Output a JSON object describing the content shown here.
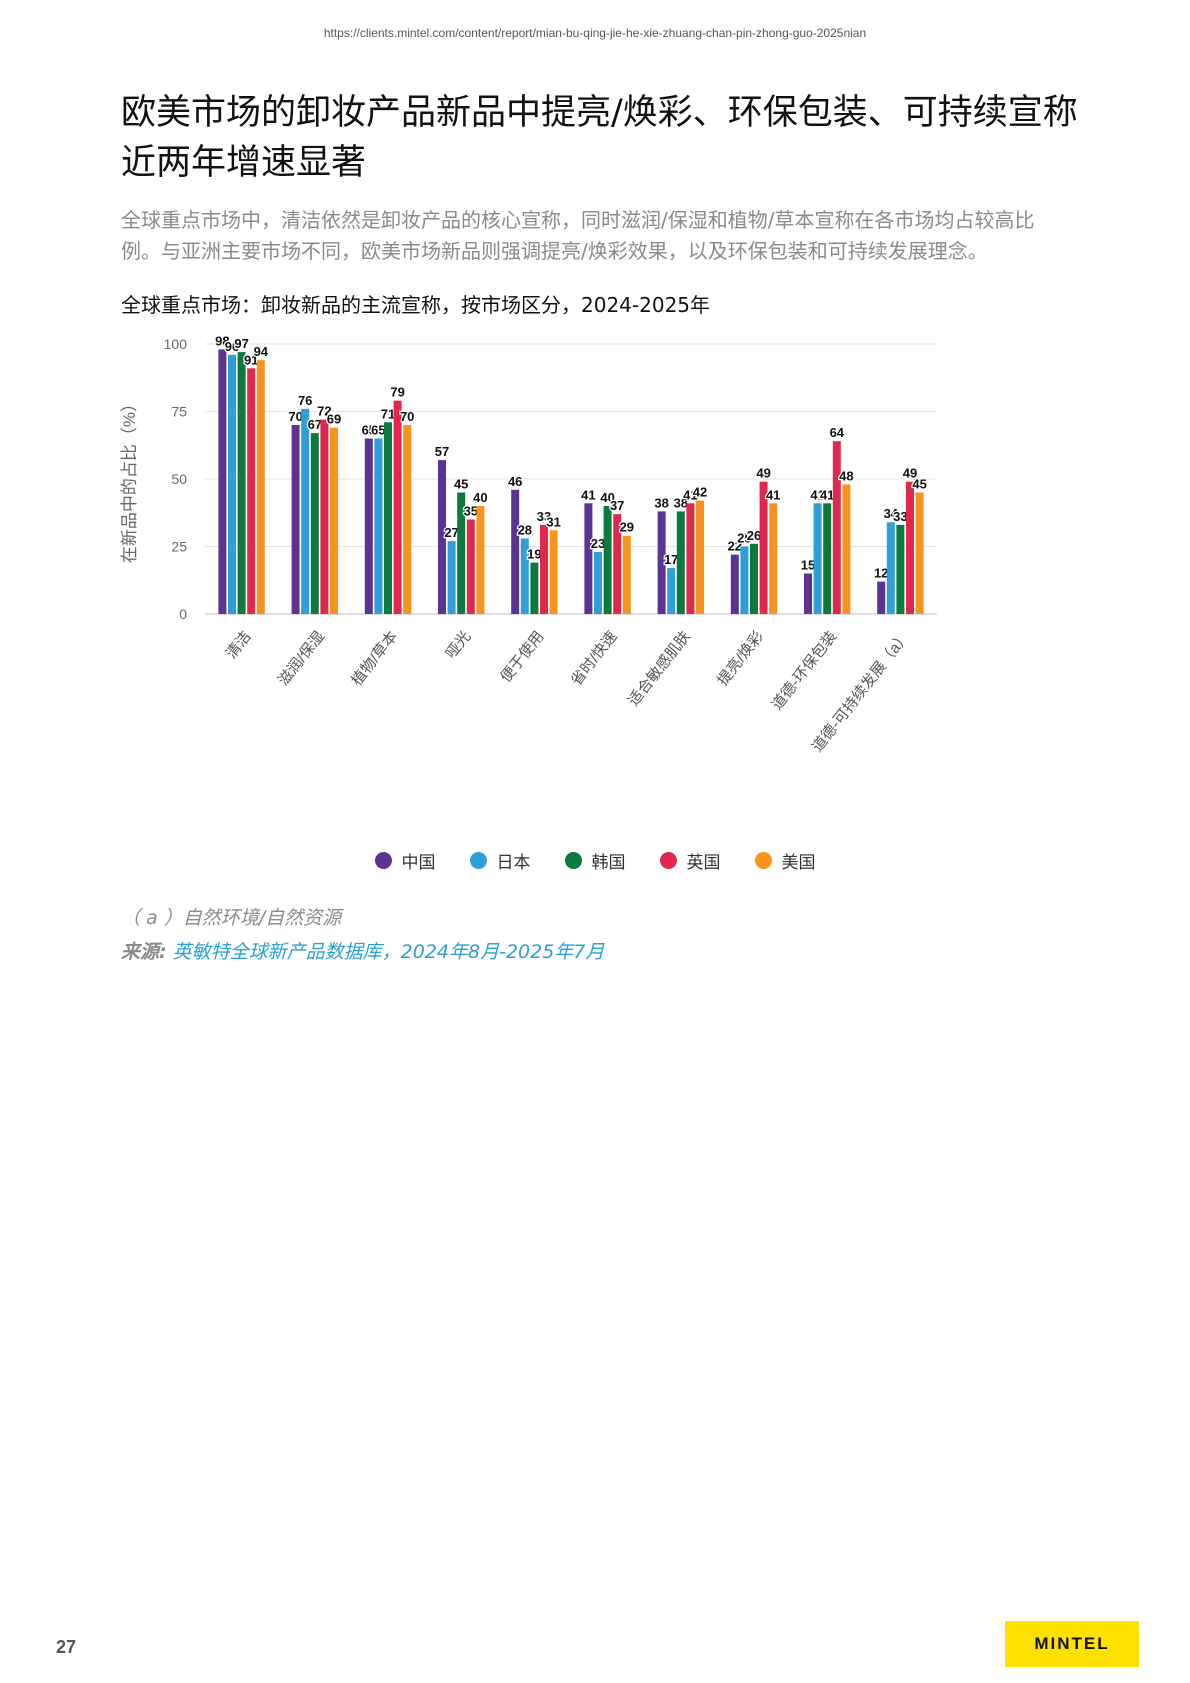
{
  "header": {
    "url": "https://clients.mintel.com/content/report/mian-bu-qing-jie-he-xie-zhuang-chan-pin-zhong-guo-2025nian"
  },
  "title_line1": "欧美市场的卸妆产品新品中提亮/焕彩、环保包装、可持续宣称",
  "title_line2": "近两年增速显著",
  "subtitle_line1": "全球重点市场中，清洁依然是卸妆产品的核心宣称，同时滋润/保湿和植物/草本宣称在各市场均占较高比",
  "subtitle_line2": "例。与亚洲主要市场不同，欧美市场新品则强调提亮/焕彩效果，以及环保包装和可持续发展理念。",
  "chart_title": "全球重点市场：卸妆新品的主流宣称，按市场区分，2024-2025年",
  "chart_data": {
    "type": "bar",
    "ylabel": "在新品中的占比（%）",
    "ylim": [
      0,
      100
    ],
    "yticks": [
      0,
      25,
      50,
      75,
      100
    ],
    "grid": true,
    "legend_position": "bottom",
    "categories": [
      "清洁",
      "滋润/保湿",
      "植物/草本",
      "哑光",
      "便于使用",
      "省时/快速",
      "适合敏感肌肤",
      "提亮/焕彩",
      "道德-环保包装",
      "道德-可持续发展（a）"
    ],
    "series": [
      {
        "name": "中国",
        "color": "#5c3292",
        "values": [
          98,
          70,
          65,
          57,
          46,
          41,
          38,
          22,
          15,
          12
        ]
      },
      {
        "name": "日本",
        "color": "#2e9fd9",
        "values": [
          96,
          76,
          65,
          27,
          28,
          23,
          17,
          25,
          41,
          34
        ]
      },
      {
        "name": "韩国",
        "color": "#0a7a3e",
        "values": [
          97,
          67,
          71,
          45,
          19,
          40,
          38,
          26,
          41,
          33
        ]
      },
      {
        "name": "英国",
        "color": "#e0284c",
        "values": [
          91,
          72,
          79,
          35,
          33,
          37,
          41,
          49,
          64,
          49
        ]
      },
      {
        "name": "美国",
        "color": "#f7941d",
        "values": [
          94,
          69,
          70,
          40,
          31,
          29,
          42,
          41,
          48,
          45
        ]
      }
    ]
  },
  "footnote": "（ a ）自然环境/自然资源",
  "source_label": "来源:",
  "source_text": "英敏特全球新产品数据库，2024年8月-2025年7月",
  "page_number": "27",
  "brand": "MINTEL"
}
